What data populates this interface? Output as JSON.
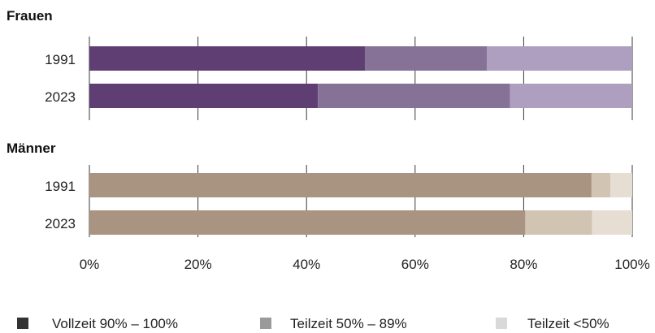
{
  "chart_data": {
    "type": "bar",
    "stacked": true,
    "orientation": "horizontal",
    "xlim": [
      0,
      100
    ],
    "x_ticks": [
      "0%",
      "20%",
      "40%",
      "60%",
      "80%",
      "100%"
    ],
    "legend": {
      "placement": "bottom",
      "entries": [
        {
          "label": "Vollzeit 90% – 100%",
          "color": "#333333"
        },
        {
          "label": "Teilzeit 50% – 89%",
          "color": "#9a9a9a"
        },
        {
          "label": "Teilzeit <50%",
          "color": "#d9d9d9"
        }
      ]
    },
    "groups": [
      {
        "title": "Frauen",
        "colors": [
          "#5f3f73",
          "#867197",
          "#ae9ebf"
        ],
        "bars": [
          {
            "category": "1991",
            "values": [
              50.8,
              22.4,
              26.8
            ]
          },
          {
            "category": "2023",
            "values": [
              42.1,
              35.4,
              22.5
            ]
          }
        ]
      },
      {
        "title": "Männer",
        "colors": [
          "#a89480",
          "#d2c4b3",
          "#e6ddd3"
        ],
        "bars": [
          {
            "category": "1991",
            "values": [
              92.5,
              3.5,
              4.0
            ]
          },
          {
            "category": "2023",
            "values": [
              80.3,
              12.3,
              7.4
            ]
          }
        ]
      }
    ]
  }
}
